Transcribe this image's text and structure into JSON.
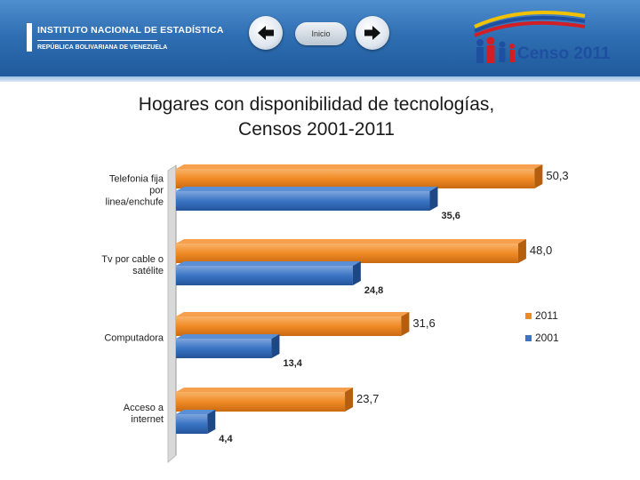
{
  "header": {
    "org_name": "INSTITUTO NACIONAL DE ESTADÍSTICA",
    "org_subtitle": "REPÚBLICA BOLIVARIANA DE VENEZUELA",
    "home_label": "Inicio",
    "censo_label": "Censo 2011",
    "colors": {
      "bar_top": "#4f8fcf",
      "bar_bottom": "#1f5a9c"
    }
  },
  "icons": [
    "arrow-left-icon",
    "arrow-right-icon",
    "family-icon"
  ],
  "chart_data": {
    "type": "bar",
    "orientation": "horizontal",
    "title": "Hogares con disponibilidad de tecnologías,\nCensos 2001-2011",
    "categories": [
      "Telefonía fija por línea/enchufe",
      "Tv por cable o satélite",
      "Computadora",
      "Acceso a internet"
    ],
    "category_labels": [
      [
        "Telefonia fija",
        "por",
        "linea/enchufe"
      ],
      [
        "Tv por cable o",
        "satélite"
      ],
      [
        "Computadora"
      ],
      [
        "Acceso a",
        "internet"
      ]
    ],
    "series": [
      {
        "name": "2011",
        "color": "#f08a24",
        "values": [
          50.3,
          48.0,
          31.6,
          23.7
        ],
        "labels": [
          "50,3",
          "48,0",
          "31,6",
          "23,7"
        ]
      },
      {
        "name": "2001",
        "color": "#3a74c4",
        "values": [
          35.6,
          24.8,
          13.4,
          4.4
        ],
        "labels": [
          "35,6",
          "24,8",
          "13,4",
          "4,4"
        ]
      }
    ],
    "xlim": [
      0,
      52
    ],
    "legend_position": "right",
    "grid": false
  }
}
